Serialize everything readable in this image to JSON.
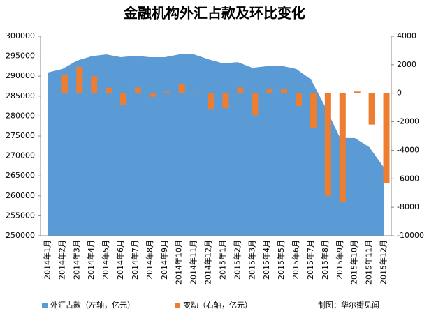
{
  "chart_data": {
    "type": "area_bar",
    "title": "金融机构外汇占款及环比变化",
    "categories": [
      "2014年1月",
      "2014年2月",
      "2014年3月",
      "2014年4月",
      "2014年5月",
      "2014年6月",
      "2014年7月",
      "2014年8月",
      "2014年9月",
      "2014年10月",
      "2014年11月",
      "2014年12月",
      "2015年1月",
      "2015年2月",
      "2015年3月",
      "2015年4月",
      "2015年5月",
      "2015年6月",
      "2015年7月",
      "2015年8月",
      "2015年9月",
      "2015年10月",
      "2015年11月",
      "2015年12月"
    ],
    "series": [
      {
        "name": "外汇占款（左轴，亿元）",
        "color": "#5b9bd5",
        "axis": "y",
        "values": [
          290900,
          291800,
          293900,
          295000,
          295450,
          294750,
          295100,
          294750,
          294750,
          295450,
          295450,
          294200,
          293200,
          293500,
          292100,
          292500,
          292600,
          291800,
          289200,
          282200,
          274500,
          274500,
          272200,
          267100
        ]
      },
      {
        "name": "变动（右轴，亿元）",
        "color": "#ed7d31",
        "axis": "y2",
        "values": [
          null,
          1300,
          1850,
          1200,
          380,
          -850,
          400,
          -250,
          100,
          650,
          50,
          -1150,
          -1050,
          400,
          -1550,
          300,
          330,
          -900,
          -2450,
          -7200,
          -7600,
          120,
          -2200,
          -6300
        ]
      }
    ],
    "ylim": [
      250000,
      300000
    ],
    "yticks": [
      250000,
      255000,
      260000,
      265000,
      270000,
      275000,
      280000,
      285000,
      290000,
      295000,
      300000
    ],
    "y2lim": [
      -10000,
      4000
    ],
    "y2ticks": [
      -10000,
      -8000,
      -6000,
      -4000,
      -2000,
      0,
      2000,
      4000
    ],
    "source": "制图：华尔街见闻"
  }
}
